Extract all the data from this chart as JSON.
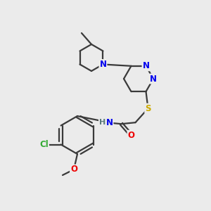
{
  "bg_color": "#ebebeb",
  "atom_colors": {
    "N": "#0000ee",
    "S": "#ccaa00",
    "O": "#ee0000",
    "Cl": "#33aa33",
    "C": "#3a3a3a",
    "H": "#5a7a7a"
  },
  "bond_color": "#3a3a3a",
  "bond_lw": 1.6,
  "figsize": [
    3.0,
    3.0
  ],
  "dpi": 100
}
